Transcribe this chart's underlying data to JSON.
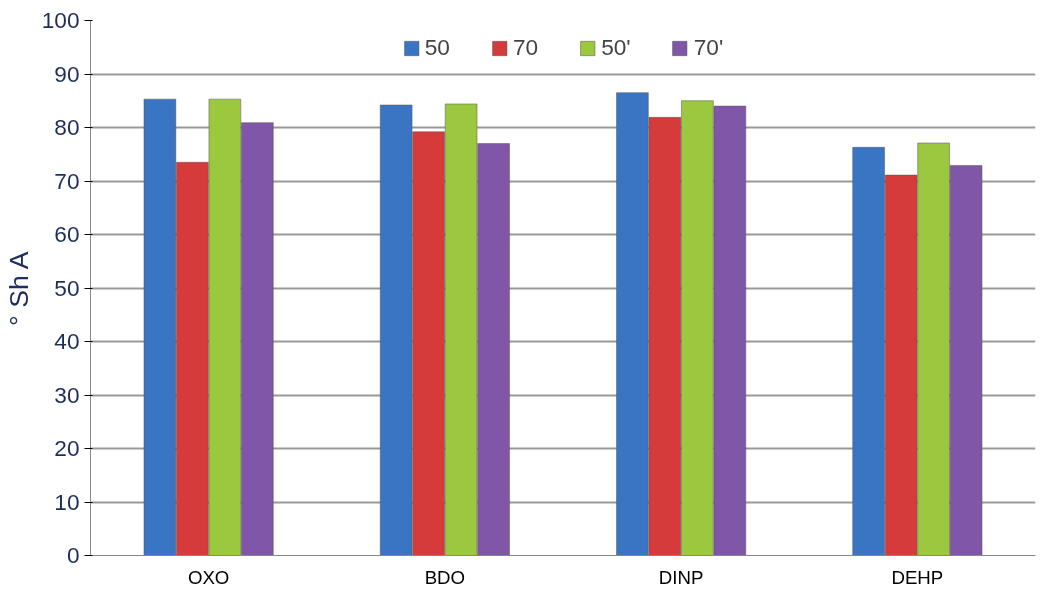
{
  "chart_data": {
    "type": "bar",
    "ylabel": "° Sh A",
    "categories": [
      "OXO",
      "BDO",
      "DINP",
      "DEHP"
    ],
    "series": [
      {
        "name": "50",
        "color": "#3a75c4",
        "values": [
          85.3,
          84.2,
          86.5,
          76.3
        ]
      },
      {
        "name": "70",
        "color": "#d63b3b",
        "values": [
          73.5,
          79.2,
          81.9,
          71.1
        ]
      },
      {
        "name": "50'",
        "color": "#9bc83e",
        "values": [
          85.3,
          84.4,
          85.0,
          77.1
        ]
      },
      {
        "name": "70'",
        "color": "#7f56a8",
        "values": [
          80.9,
          77.0,
          84.0,
          72.9
        ]
      }
    ],
    "ylim": [
      0,
      100
    ],
    "yticks": [
      0,
      10,
      20,
      30,
      40,
      50,
      60,
      70,
      80,
      90,
      100
    ],
    "grid": "y",
    "legend": "top"
  }
}
